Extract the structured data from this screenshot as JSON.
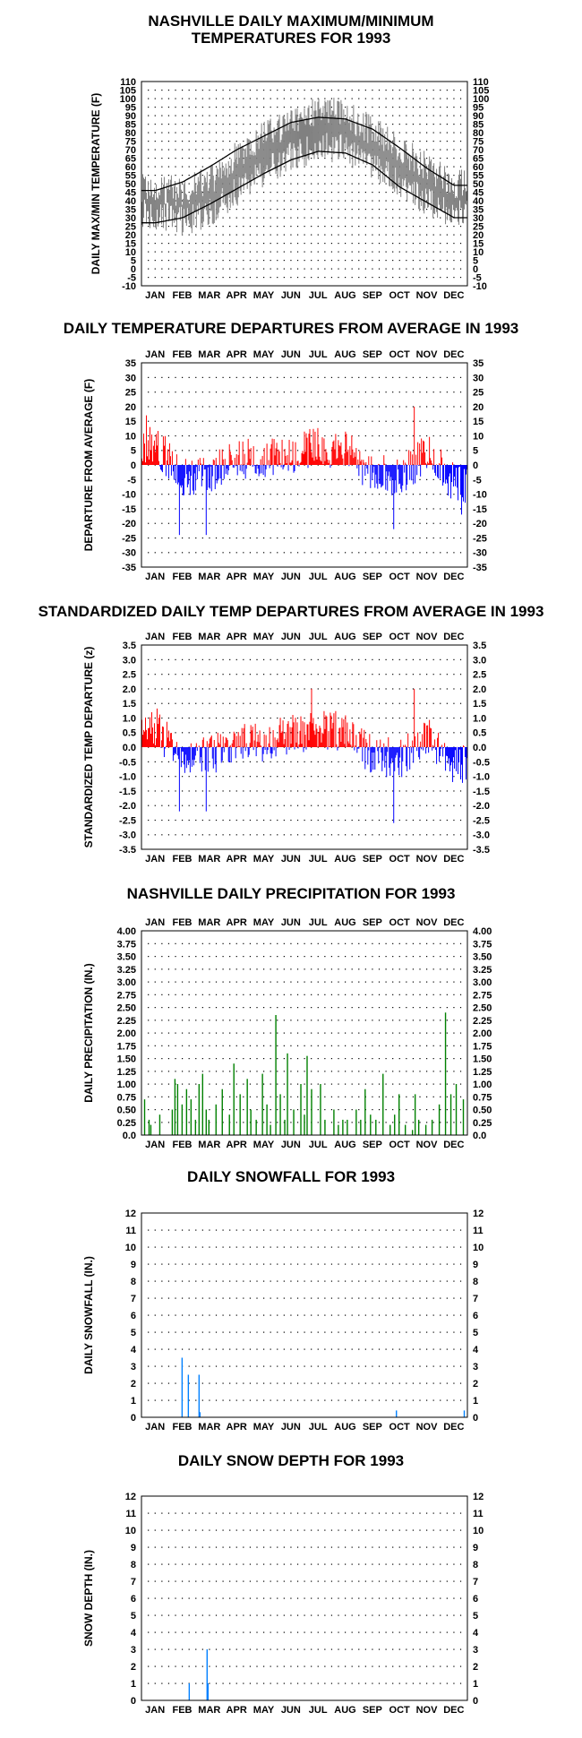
{
  "months": [
    "JAN",
    "FEB",
    "MAR",
    "APR",
    "MAY",
    "JUN",
    "JUL",
    "AUG",
    "SEP",
    "OCT",
    "NOV",
    "DEC"
  ],
  "chart_data": [
    {
      "type": "line",
      "title": [
        "NASHVILLE DAILY MAXIMUM/MINIMUM",
        "TEMPERATURES FOR 1993"
      ],
      "ylabel": "DAILY MAX/MIN TEMPERATURE (F)",
      "ylim": [
        -10,
        110
      ],
      "yticks": [
        -10,
        -5,
        0,
        5,
        10,
        15,
        20,
        25,
        30,
        35,
        40,
        45,
        50,
        55,
        60,
        65,
        70,
        75,
        80,
        85,
        90,
        95,
        100,
        105,
        110
      ],
      "grid": true,
      "series": [
        {
          "role": "daily-range",
          "color": "#808080",
          "high_by_month": [
            48,
            45,
            52,
            66,
            78,
            86,
            94,
            90,
            81,
            70,
            60,
            50
          ],
          "low_by_month": [
            32,
            28,
            33,
            45,
            56,
            66,
            72,
            70,
            62,
            49,
            40,
            32
          ]
        },
        {
          "role": "normal-max",
          "color": "#000000",
          "values_by_month": [
            46,
            51,
            60,
            70,
            78,
            86,
            89,
            88,
            82,
            71,
            59,
            49
          ]
        },
        {
          "role": "normal-min",
          "color": "#000000",
          "values_by_month": [
            27,
            30,
            38,
            47,
            56,
            64,
            69,
            68,
            61,
            48,
            39,
            30
          ]
        }
      ]
    },
    {
      "type": "bar",
      "title": [
        "DAILY TEMPERATURE DEPARTURES FROM AVERAGE IN 1993"
      ],
      "ylabel": "DEPARTURE FROM AVERAGE (F)",
      "ylim": [
        -35,
        35
      ],
      "yticks": [
        -35,
        -30,
        -25,
        -20,
        -15,
        -10,
        -5,
        0,
        5,
        10,
        15,
        20,
        25,
        30,
        35
      ],
      "grid": true,
      "colors": {
        "positive": "#ff0000",
        "negative": "#0000ff"
      },
      "key_values": [
        {
          "day": 5,
          "value": 17
        },
        {
          "day": 42,
          "value": -24
        },
        {
          "day": 72,
          "value": -24
        },
        {
          "day": 282,
          "value": -22
        },
        {
          "day": 305,
          "value": 20
        },
        {
          "day": 358,
          "value": -17
        }
      ]
    },
    {
      "type": "bar",
      "title": [
        "STANDARDIZED DAILY TEMP DEPARTURES FROM AVERAGE IN 1993"
      ],
      "ylabel": "STANDARDIZED TEMP DEPARTURE (z)",
      "ylim": [
        -3.5,
        3.5
      ],
      "yticks": [
        "-3.5",
        "-3.0",
        "-2.5",
        "-2.0",
        "-1.5",
        "-1.0",
        "-0.5",
        "0.0",
        "0.5",
        "1.0",
        "1.5",
        "2.0",
        "2.5",
        "3.0",
        "3.5"
      ],
      "grid": true,
      "colors": {
        "positive": "#ff0000",
        "negative": "#0000ff"
      },
      "key_values": [
        {
          "day": 42,
          "value": -2.2
        },
        {
          "day": 72,
          "value": -2.2
        },
        {
          "day": 190,
          "value": 2.0
        },
        {
          "day": 282,
          "value": -2.6
        },
        {
          "day": 305,
          "value": 2.0
        }
      ]
    },
    {
      "type": "bar",
      "title": [
        "NASHVILLE DAILY PRECIPITATION FOR 1993"
      ],
      "ylabel": "DAILY PRECIPITATION (IN.)",
      "ylim": [
        0,
        4.0
      ],
      "yticks": [
        "0.0",
        "0.25",
        "0.50",
        "0.75",
        "1.00",
        "1.25",
        "1.50",
        "1.75",
        "2.00",
        "2.25",
        "2.50",
        "2.75",
        "3.00",
        "3.25",
        "3.50",
        "3.75",
        "4.00"
      ],
      "grid": true,
      "colors": {
        "bar": "#008000"
      },
      "days": [
        3,
        8,
        10,
        20,
        34,
        37,
        40,
        45,
        50,
        55,
        60,
        64,
        68,
        72,
        75,
        83,
        90,
        98,
        103,
        110,
        118,
        122,
        128,
        135,
        140,
        144,
        150,
        155,
        160,
        163,
        170,
        178,
        182,
        185,
        190,
        200,
        205,
        215,
        220,
        225,
        230,
        240,
        245,
        250,
        256,
        262,
        270,
        278,
        283,
        288,
        295,
        303,
        306,
        310,
        318,
        325,
        333,
        340,
        346,
        352,
        360
      ],
      "values": [
        0.7,
        0.3,
        0.2,
        0.4,
        0.5,
        1.1,
        1.0,
        0.6,
        0.9,
        0.7,
        0.3,
        1.0,
        1.2,
        0.5,
        0.3,
        0.6,
        0.9,
        0.4,
        1.4,
        0.8,
        1.1,
        0.5,
        0.3,
        1.2,
        0.6,
        0.2,
        2.35,
        0.8,
        0.3,
        1.6,
        0.5,
        1.0,
        0.4,
        1.55,
        0.9,
        1.0,
        0.3,
        0.5,
        0.2,
        0.3,
        0.3,
        0.5,
        0.3,
        0.9,
        0.4,
        0.3,
        1.2,
        0.2,
        0.4,
        0.8,
        0.2,
        0.1,
        0.8,
        0.3,
        0.2,
        0.3,
        0.6,
        2.4,
        0.8,
        1.0,
        0.7
      ]
    },
    {
      "type": "bar",
      "title": [
        "DAILY SNOWFALL FOR 1993"
      ],
      "ylabel": "DAILY SNOWFALL (IN.)",
      "ylim": [
        0,
        12
      ],
      "yticks": [
        "0",
        "1",
        "2",
        "3",
        "4",
        "5",
        "6",
        "7",
        "8",
        "9",
        "10",
        "11",
        "12"
      ],
      "grid": true,
      "colors": {
        "bar": "#0080ff"
      },
      "days": [
        45,
        52,
        64,
        65,
        285,
        361
      ],
      "values": [
        3.5,
        2.5,
        2.5,
        0.3,
        0.4,
        0.4
      ]
    },
    {
      "type": "bar",
      "title": [
        "DAILY SNOW DEPTH FOR 1993"
      ],
      "ylabel": "SNOW DEPTH (IN.)",
      "ylim": [
        0,
        12
      ],
      "yticks": [
        "0",
        "1",
        "2",
        "3",
        "4",
        "5",
        "6",
        "7",
        "8",
        "9",
        "10",
        "11",
        "12"
      ],
      "grid": true,
      "colors": {
        "bar": "#0080ff"
      },
      "days": [
        53,
        73,
        74
      ],
      "values": [
        1,
        3,
        1
      ]
    }
  ]
}
